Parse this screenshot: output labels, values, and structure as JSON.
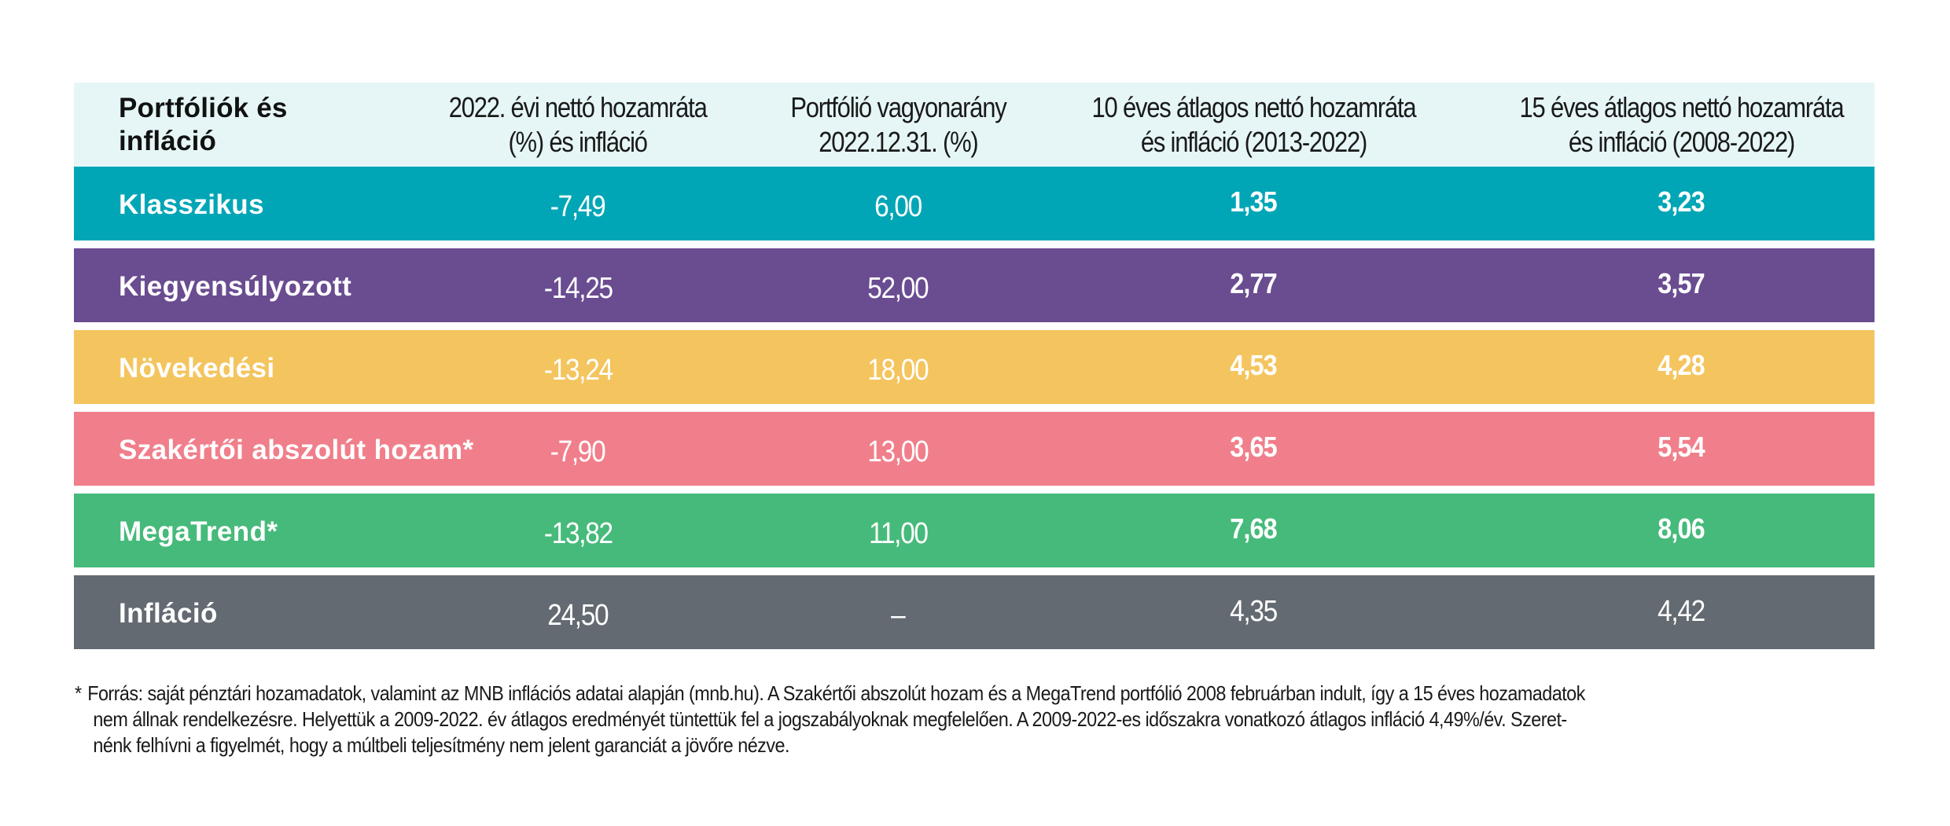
{
  "table": {
    "headers": [
      {
        "lines": [
          "Portfóliók és",
          "infláció"
        ]
      },
      {
        "lines": [
          "2022. évi nettó hozamráta",
          "(%) és infláció"
        ]
      },
      {
        "lines": [
          "Portfólió vagyonarány",
          "2022.12.31. (%)"
        ]
      },
      {
        "lines": [
          "10 éves átlagos nettó hozamráta",
          "és infláció (2013-2022)"
        ]
      },
      {
        "lines": [
          "15 éves átlagos nettó hozamráta",
          "és infláció (2008-2022)"
        ]
      }
    ],
    "header_label": "Portfóliók és infláció",
    "rows": [
      {
        "name": "Klasszikus",
        "return_2022": "-7,49",
        "allocation": "6,00",
        "avg_10y": "1,35",
        "avg_15y": "3,23",
        "color": "#00A6B6"
      },
      {
        "name": "Kiegyensúlyozott",
        "return_2022": "-14,25",
        "allocation": "52,00",
        "avg_10y": "2,77",
        "avg_15y": "3,57",
        "color": "#6A4C91"
      },
      {
        "name": "Növekedési",
        "return_2022": "-13,24",
        "allocation": "18,00",
        "avg_10y": "4,53",
        "avg_15y": "4,28",
        "color": "#F4C55E"
      },
      {
        "name": "Szakértői abszolút hozam*",
        "return_2022": "-7,90",
        "allocation": "13,00",
        "avg_10y": "3,65",
        "avg_15y": "5,54",
        "color": "#F07F8B"
      },
      {
        "name": "MegaTrend*",
        "return_2022": "-13,82",
        "allocation": "11,00",
        "avg_10y": "7,68",
        "avg_15y": "8,06",
        "color": "#46BA7A"
      },
      {
        "name": "Infláció",
        "return_2022": "24,50",
        "allocation": "–",
        "avg_10y": "4,35",
        "avg_15y": "4,42",
        "color": "#636A71"
      }
    ],
    "header_bg": "#E6F6F7"
  },
  "footnote": {
    "asterisk": "*",
    "lines": [
      "Forrás: saját pénztári hozamadatok, valamint az MNB inflációs adatai alapján (mnb.hu). A Szakértői abszolút hozam és a MegaTrend portfólió 2008 februárban indult, így a 15 éves hozamadatok",
      "nem állnak rendelkezésre. Helyettük a 2009-2022. év átlagos eredményét tüntettük fel a jogszabályoknak megfelelően. A 2009-2022-es időszakra vonatkozó átlagos infláció 4,49%/év. Szeret-",
      "nénk felhívni a figyelmét, hogy a múltbeli teljesítmény nem jelent garanciát a jövőre nézve."
    ]
  }
}
